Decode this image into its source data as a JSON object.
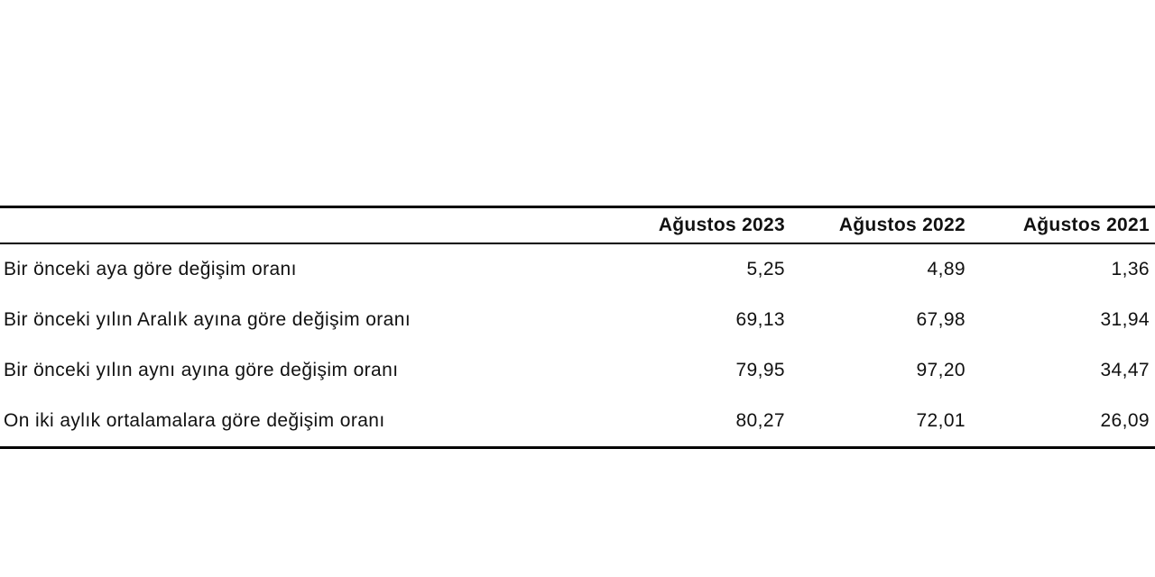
{
  "table": {
    "columns": [
      "Ağustos 2023",
      "Ağustos 2022",
      "Ağustos 2021"
    ],
    "rows": [
      {
        "label": "Bir önceki aya göre değişim oranı",
        "values": [
          "5,25",
          "4,89",
          "1,36"
        ]
      },
      {
        "label": "Bir önceki yılın Aralık ayına göre değişim oranı",
        "values": [
          "69,13",
          "67,98",
          "31,94"
        ]
      },
      {
        "label": "Bir önceki yılın aynı ayına göre değişim oranı",
        "values": [
          "79,95",
          "97,20",
          "34,47"
        ]
      },
      {
        "label": "On iki aylık ortalamalara göre değişim oranı",
        "values": [
          "80,27",
          "72,01",
          "26,09"
        ]
      }
    ]
  }
}
